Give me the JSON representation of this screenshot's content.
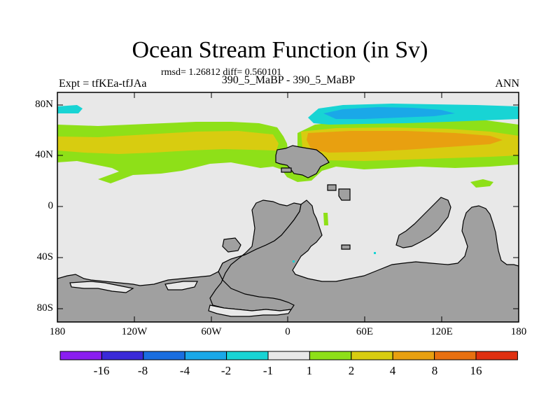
{
  "title": "Ocean Stream Function (in Sv)",
  "stats": "rmsd= 1.26812 diff= 0.560101",
  "left_label": "Expt = tfKEa-tfJAa",
  "center_label": "390_5_MaBP - 390_5_MaBP",
  "right_label": "ANN",
  "y_ticks": [
    "80N",
    "40N",
    "0",
    "40S",
    "80S"
  ],
  "x_ticks": [
    "180",
    "120W",
    "60W",
    "0",
    "60E",
    "120E",
    "180"
  ],
  "colorbar": {
    "colors": [
      "#8a1ef0",
      "#3a2ad8",
      "#1a6ee0",
      "#1aa8e8",
      "#18d4d4",
      "#e8e8e8",
      "#8ee018",
      "#d8cc10",
      "#e8a010",
      "#e87010",
      "#e03010"
    ],
    "labels": [
      "-16",
      "-8",
      "-4",
      "-2",
      "-1",
      "1",
      "2",
      "4",
      "8",
      "16"
    ]
  },
  "colors": {
    "land": "#a0a0a0",
    "ocean_neutral": "#e8e8e8",
    "green": "#8ee018",
    "yellow": "#d8cc10",
    "orange": "#e8a010",
    "cyan": "#18d4d4",
    "blue": "#1aa8e8"
  }
}
